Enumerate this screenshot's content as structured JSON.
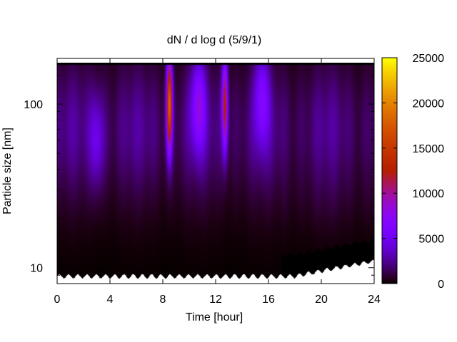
{
  "chart_data": {
    "type": "heatmap",
    "title": "dN / d log d (5/9/1)",
    "xlabel": "Time [hour]",
    "ylabel": "Particle size [nm]",
    "xlim": [
      0,
      24
    ],
    "ylim": [
      8,
      190
    ],
    "yscale": "log",
    "x_ticks": [
      0,
      4,
      8,
      12,
      16,
      20,
      24
    ],
    "x_tick_labels": [
      "0",
      "4",
      "8",
      "12",
      "16",
      "20",
      "24"
    ],
    "y_ticks": [
      10,
      100
    ],
    "y_tick_labels": [
      "10",
      "100"
    ],
    "colorbar": {
      "colormap": "gnuplot",
      "range": [
        0,
        25000
      ],
      "ticks": [
        0,
        5000,
        10000,
        15000,
        20000,
        25000
      ],
      "tick_labels": [
        "0",
        "5000",
        "10000",
        "15000",
        "20000",
        "25000"
      ]
    },
    "grid": false,
    "colors": {
      "low": "#000000",
      "mid_low": "#5a00c8",
      "mid": "#9c1ecc",
      "high": "#d34700",
      "top": "#ffef00"
    },
    "bursts": [
      {
        "time_h": 8.5,
        "diameter_nm": 100,
        "peak": 17000
      },
      {
        "time_h": 10.7,
        "diameter_nm": 100,
        "peak": 6000
      },
      {
        "time_h": 12.7,
        "diameter_nm": 100,
        "peak": 11500
      },
      {
        "time_h": 15.5,
        "diameter_nm": 110,
        "peak": 5000
      },
      {
        "time_h": 3.0,
        "diameter_nm": 60,
        "peak": 3500
      }
    ]
  }
}
